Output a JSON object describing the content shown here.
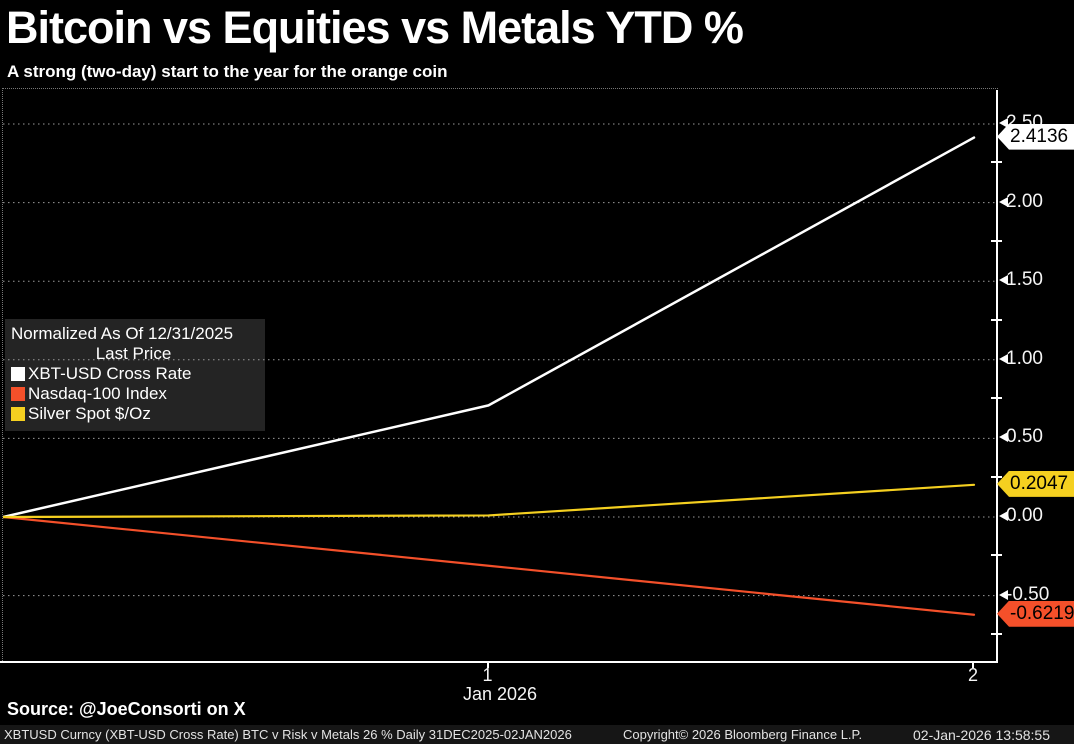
{
  "header": {
    "title": "Bitcoin vs Equities vs Metals YTD %",
    "subtitle": "A strong (two-day) start to the year for the orange coin"
  },
  "legend": {
    "title_line": "Normalized As Of 12/31/2025",
    "subtitle_line": "Last Price",
    "items": [
      {
        "label": "XBT-USD Cross Rate",
        "color": "#ffffff"
      },
      {
        "label": "Nasdaq-100 Index",
        "color": "#f4502a"
      },
      {
        "label": "Silver Spot $/Oz",
        "color": "#f5d020"
      }
    ]
  },
  "y_axis": {
    "ticks": [
      {
        "label": "2.50",
        "value": 2.5
      },
      {
        "label": "2.00",
        "value": 2.0
      },
      {
        "label": "1.50",
        "value": 1.5
      },
      {
        "label": "1.00",
        "value": 1.0
      },
      {
        "label": "0.50",
        "value": 0.5
      },
      {
        "label": "0.00",
        "value": 0.0
      },
      {
        "label": "-0.50",
        "value": -0.5
      }
    ],
    "minor_tick_values": [
      2.25,
      1.75,
      1.25,
      0.75,
      0.25,
      -0.25,
      -0.75
    ]
  },
  "x_axis": {
    "ticks": [
      {
        "label": "1",
        "data_index": 1
      },
      {
        "label": "2",
        "data_index": 2
      }
    ],
    "month_label": "Jan 2026"
  },
  "source_line": "Source: @JoeConsorti on X",
  "footer": {
    "left": "XBTUSD Curncy (XBT-USD Cross Rate) BTC v Risk v Metals 26 % Daily 31DEC2025-02JAN2026",
    "center": "Copyright© 2026 Bloomberg Finance L.P.",
    "right": "02-Jan-2026 13:58:55"
  },
  "chart_data": {
    "type": "line",
    "title": "Bitcoin vs Equities vs Metals YTD %",
    "subtitle": "A strong (two-day) start to the year for the orange coin",
    "normalization_note": "Normalized As Of 12/31/2025",
    "value_basis": "Last Price",
    "x": [
      "31-Dec-2025",
      "01-Jan-2026",
      "02-Jan-2026"
    ],
    "x_axis_label": "Jan 2026",
    "series": [
      {
        "name": "XBT-USD Cross Rate",
        "color": "#ffffff",
        "values": [
          0,
          0.71,
          2.4136
        ],
        "last_price_label": "2.4136"
      },
      {
        "name": "Nasdaq-100 Index",
        "color": "#f4502a",
        "values": [
          0,
          -0.31,
          -0.6219
        ],
        "last_price_label": "-0.6219"
      },
      {
        "name": "Silver Spot $/Oz",
        "color": "#f5d020",
        "values": [
          0,
          0.01,
          0.2047
        ],
        "last_price_label": "0.2047"
      }
    ],
    "y_ticks": [
      2.5,
      2.0,
      1.5,
      1.0,
      0.5,
      0.0,
      -0.5
    ],
    "ylim": [
      -0.93,
      2.72
    ],
    "grid": "dotted-horizontal",
    "legend_position": "middle-left"
  }
}
